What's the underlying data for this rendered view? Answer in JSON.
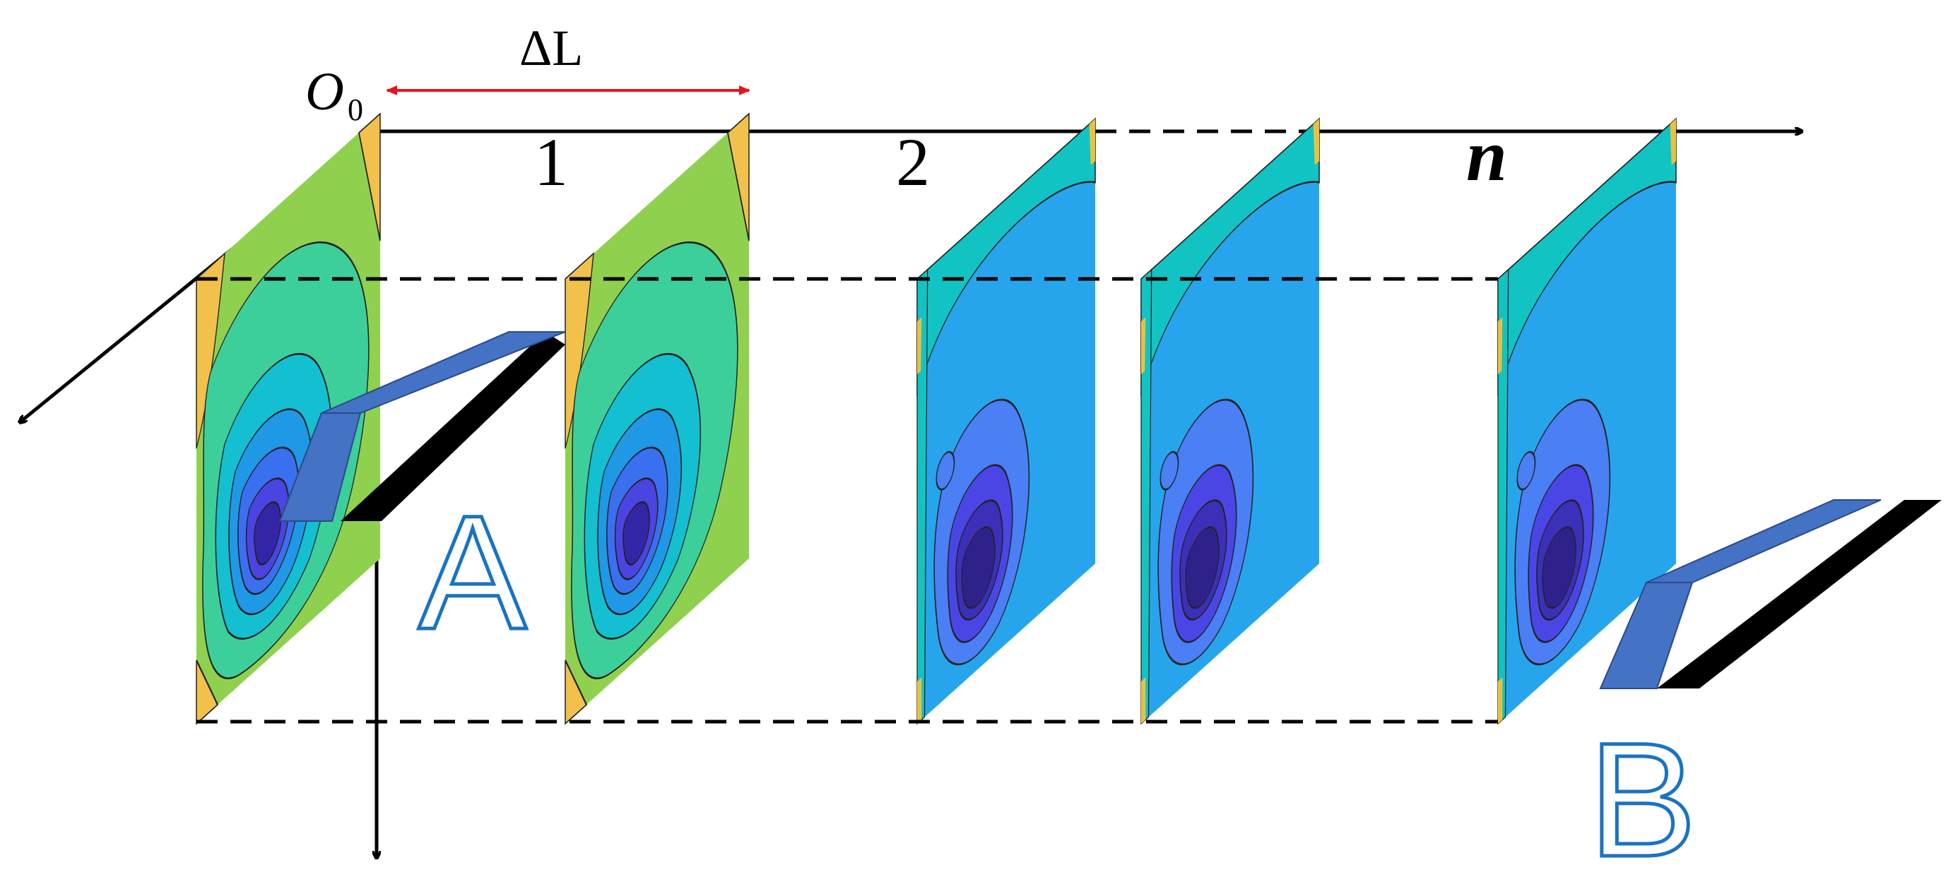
{
  "labels": {
    "delta": "ΔL",
    "origin": "O",
    "origin_sub": "0",
    "plane_1": "1",
    "plane_2": "2",
    "plane_n": "n",
    "body_a": "A",
    "body_b": "B"
  },
  "colors": {
    "axis": "#000000",
    "dimension_arrow": "#e8141b",
    "outline_letter": "#1a73c4",
    "body_face": "#4472c4",
    "body_shadow": "#000000",
    "plane_1_palette": [
      "#f2c14b",
      "#8fd14f",
      "#3dcf9a",
      "#13bfd0",
      "#1f98e6",
      "#3a6ff0",
      "#4a44e0",
      "#3226a6"
    ],
    "plane_far_palette": [
      "#e8c23f",
      "#12c3c3",
      "#27a5ec",
      "#4a7ff5",
      "#4a46e6",
      "#3c2fb8",
      "#2e228a"
    ]
  }
}
